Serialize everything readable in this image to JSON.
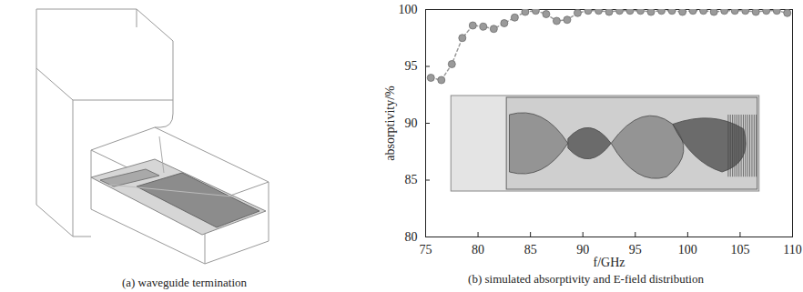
{
  "diagram": {
    "caption": "(a) waveguide termination"
  },
  "chart_data": {
    "type": "line",
    "caption": "(b) simulated absorptivity and E-field distribution",
    "x_label": "f/GHz",
    "y_label": "absorptivity/%",
    "x": [
      75.5,
      76.5,
      77.5,
      78.5,
      79.5,
      80.5,
      81.5,
      82.5,
      83.5,
      84.5,
      85.5,
      86.5,
      87.5,
      88.5,
      89.5,
      90.5,
      91.5,
      92.5,
      93.5,
      94.5,
      95.5,
      96.5,
      97.5,
      98.5,
      99.5,
      100.5,
      101.5,
      102.5,
      103.5,
      104.5,
      105.5,
      106.5,
      107.5,
      108.5,
      109.5
    ],
    "series": [
      {
        "name": "absorptivity",
        "color": "#9a9a9a",
        "marker": "circle",
        "line_style": "dashed",
        "values": [
          94.0,
          93.8,
          95.2,
          97.5,
          98.6,
          98.5,
          98.3,
          98.8,
          99.3,
          99.8,
          99.9,
          99.6,
          99.0,
          99.1,
          99.7,
          99.9,
          99.9,
          99.8,
          99.9,
          99.9,
          99.9,
          99.8,
          99.9,
          99.9,
          99.8,
          99.9,
          99.9,
          99.8,
          99.9,
          99.9,
          99.9,
          99.8,
          99.9,
          99.9,
          99.7
        ]
      }
    ],
    "xlim": [
      75,
      110
    ],
    "xticks": [
      75,
      80,
      85,
      90,
      95,
      100,
      105,
      110
    ],
    "ylim": [
      80,
      100
    ],
    "yticks": [
      80,
      85,
      90,
      95,
      100
    ],
    "grid": false
  }
}
